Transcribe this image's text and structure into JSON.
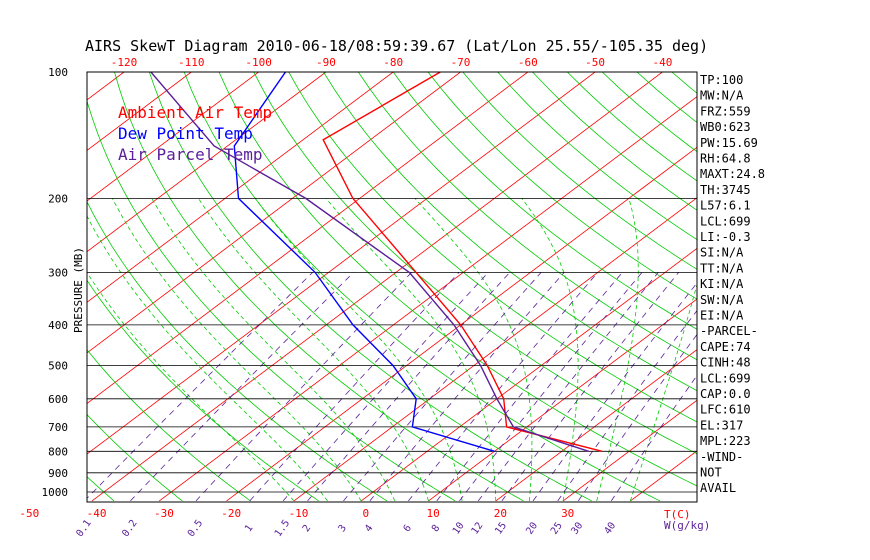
{
  "chart_data": {
    "type": "line",
    "title": "AIRS SkewT Diagram 2010-06-18/08:59:39.67 (Lat/Lon 25.55/-105.35 deg)",
    "ylabel": "PRESSURE (MB)",
    "xlabel": "T(C)",
    "mixing_label": "W(g/kg)",
    "y_scale": "log",
    "ylim": [
      1050,
      100
    ],
    "top_ticks": [
      "-120",
      "-110",
      "-100",
      "-90",
      "-80",
      "-70",
      "-60",
      "-50",
      "-40"
    ],
    "bottom_ticks": [
      "-50",
      "-40",
      "-30",
      "-20",
      "-10",
      "0",
      "10",
      "20",
      "30"
    ],
    "pressure_levels": [
      100,
      200,
      300,
      400,
      500,
      600,
      700,
      800,
      900,
      1000
    ],
    "pressure_labels": [
      "100",
      "200",
      "300",
      "400",
      "500",
      "600",
      "700",
      "800",
      "900",
      "1000"
    ],
    "mixing_ratio_labels": [
      "0.1",
      "0.2",
      "0.5",
      "1",
      "1.5",
      "2",
      "3",
      "4",
      "6",
      "8",
      "10",
      "12",
      "15",
      "20",
      "25",
      "30",
      "40"
    ],
    "series": [
      {
        "name": "Ambient Air Temp",
        "color": "#ff0000",
        "points": [
          [
            100,
            -73
          ],
          [
            145,
            -77
          ],
          [
            200,
            -61
          ],
          [
            300,
            -37
          ],
          [
            400,
            -20
          ],
          [
            500,
            -8
          ],
          [
            600,
            1
          ],
          [
            700,
            7
          ],
          [
            800,
            26
          ]
        ]
      },
      {
        "name": "Dew Point Temp",
        "color": "#0000ff",
        "points": [
          [
            100,
            -96
          ],
          [
            150,
            -89
          ],
          [
            200,
            -78
          ],
          [
            300,
            -52
          ],
          [
            400,
            -36
          ],
          [
            500,
            -22
          ],
          [
            600,
            -12
          ],
          [
            700,
            -7
          ],
          [
            800,
            10
          ]
        ]
      },
      {
        "name": "Air Parcel Temp",
        "color": "#5a1f9a",
        "points": [
          [
            100,
            -116
          ],
          [
            150,
            -92
          ],
          [
            200,
            -68
          ],
          [
            300,
            -38
          ],
          [
            400,
            -21
          ],
          [
            500,
            -9
          ],
          [
            600,
            0
          ],
          [
            700,
            8
          ],
          [
            800,
            24
          ]
        ]
      }
    ],
    "indices": [
      "TP:100",
      "MW:N/A",
      "FRZ:559",
      "WB0:623",
      "PW:15.69",
      "RH:64.8",
      "MAXT:24.8",
      "TH:3745",
      "L57:6.1",
      "LCL:699",
      "LI:-0.3",
      "SI:N/A",
      "TT:N/A",
      "KI:N/A",
      "SW:N/A",
      "EI:N/A",
      "-PARCEL-",
      "CAPE:74",
      "CINH:48",
      "LCL:699",
      "CAP:0.0",
      "LFC:610",
      "EL:317",
      "MPL:223",
      "-WIND-",
      "NOT",
      "AVAIL"
    ],
    "colors": {
      "isotherm": "#ff0000",
      "dry_adiabat": "#00cc00",
      "moist_adiabat": "#00cc00",
      "mixing_ratio": "#5a1f9a",
      "top_axis": "#ff0000",
      "bottom_axis": "#ff0000",
      "frame": "#000000"
    }
  }
}
